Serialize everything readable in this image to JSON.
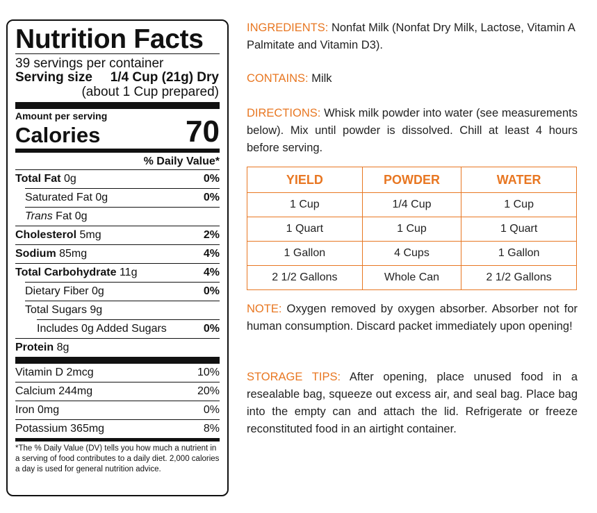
{
  "label": {
    "title": "Nutrition Facts",
    "servings": "39 servings per container",
    "serving_size_label": "Serving size",
    "serving_size_value": "1/4 Cup (21g) Dry",
    "serving_prepared": "(about 1 Cup prepared)",
    "amount_per_serving": "Amount per serving",
    "calories_label": "Calories",
    "calories_value": "70",
    "dv_header": "% Daily Value*",
    "rows": [
      {
        "name": "Total Fat",
        "amount": "0g",
        "pct": "0%"
      },
      {
        "name": "Saturated Fat",
        "amount": "0g",
        "pct": "0%"
      },
      {
        "name_italic": "Trans",
        "name": "Fat",
        "amount": "0g",
        "pct": ""
      },
      {
        "name": "Cholesterol",
        "amount": "5mg",
        "pct": "2%"
      },
      {
        "name": "Sodium",
        "amount": "85mg",
        "pct": "4%"
      },
      {
        "name": "Total Carbohydrate",
        "amount": "11g",
        "pct": "4%"
      },
      {
        "name": "Dietary Fiber",
        "amount": "0g",
        "pct": "0%"
      },
      {
        "name": "Total Sugars",
        "amount": "9g",
        "pct": ""
      },
      {
        "name": "Includes 0g Added Sugars",
        "amount": "",
        "pct": "0%"
      },
      {
        "name": "Protein",
        "amount": "8g",
        "pct": ""
      }
    ],
    "vitamins": [
      {
        "name": "Vitamin D 2mcg",
        "pct": "10%"
      },
      {
        "name": "Calcium 244mg",
        "pct": "20%"
      },
      {
        "name": "Iron 0mg",
        "pct": "0%"
      },
      {
        "name": "Potassium 365mg",
        "pct": "8%"
      }
    ],
    "footnote": "*The % Daily Value (DV) tells you how much a nutrient in a serving of food contributes to a daily diet. 2,000 calories a day is used for general nutrition advice."
  },
  "info": {
    "ingredients_label": "INGREDIENTS:",
    "ingredients_text": "Nonfat Milk (Nonfat Dry Milk, Lactose, Vitamin A Palmitate and Vitamin D3).",
    "contains_label": "CONTAINS:",
    "contains_text": "Milk",
    "directions_label": "DIRECTIONS:",
    "directions_text": "Whisk milk powder into water (see measurements below). Mix until powder is dissolved. Chill at least 4 hours before serving.",
    "note_label": "NOTE:",
    "note_text": "Oxygen removed by oxygen absorber. Absorber not for human consumption. Discard packet immediately upon opening!",
    "storage_label": "STORAGE TIPS:",
    "storage_text": "After opening, place unused food in a resealable bag, squeeze out excess air, and seal bag. Place bag into the empty can and attach the lid. Refrigerate or freeze reconstituted food in an airtight container."
  },
  "mix_table": {
    "headers": [
      "YIELD",
      "POWDER",
      "WATER"
    ],
    "rows": [
      [
        "1 Cup",
        "1/4 Cup",
        "1 Cup"
      ],
      [
        "1 Quart",
        "1 Cup",
        "1 Quart"
      ],
      [
        "1 Gallon",
        "4 Cups",
        "1 Gallon"
      ],
      [
        "2 1/2 Gallons",
        "Whole Can",
        "2 1/2 Gallons"
      ]
    ]
  },
  "colors": {
    "accent": "#e87722",
    "text": "#222222"
  }
}
